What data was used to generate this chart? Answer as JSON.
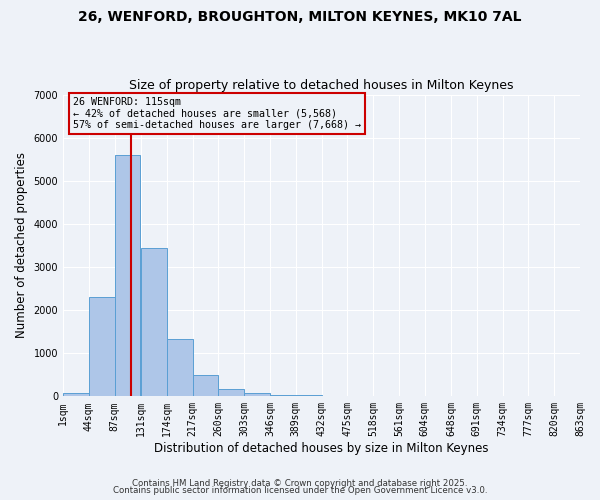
{
  "title1": "26, WENFORD, BROUGHTON, MILTON KEYNES, MK10 7AL",
  "title2": "Size of property relative to detached houses in Milton Keynes",
  "xlabel": "Distribution of detached houses by size in Milton Keynes",
  "ylabel": "Number of detached properties",
  "bar_values": [
    80,
    2300,
    5600,
    3450,
    1320,
    490,
    160,
    80,
    40,
    20,
    0,
    0,
    0,
    0,
    0,
    0,
    0,
    0,
    0,
    0
  ],
  "bin_edges": [
    1,
    44,
    87,
    131,
    174,
    217,
    260,
    303,
    346,
    389,
    432,
    475,
    518,
    561,
    604,
    648,
    691,
    734,
    777,
    820,
    863
  ],
  "xtick_labels": [
    "1sqm",
    "44sqm",
    "87sqm",
    "131sqm",
    "174sqm",
    "217sqm",
    "260sqm",
    "303sqm",
    "346sqm",
    "389sqm",
    "432sqm",
    "475sqm",
    "518sqm",
    "561sqm",
    "604sqm",
    "648sqm",
    "691sqm",
    "734sqm",
    "777sqm",
    "820sqm",
    "863sqm"
  ],
  "bar_color": "#aec6e8",
  "bar_edge_color": "#5a9fd4",
  "property_size": 115,
  "red_line_color": "#cc0000",
  "annotation_line1": "26 WENFORD: 115sqm",
  "annotation_line2": "← 42% of detached houses are smaller (5,568)",
  "annotation_line3": "57% of semi-detached houses are larger (7,668) →",
  "annotation_box_color": "#cc0000",
  "ylim": [
    0,
    7000
  ],
  "yticks": [
    0,
    1000,
    2000,
    3000,
    4000,
    5000,
    6000,
    7000
  ],
  "bg_color": "#eef2f8",
  "grid_color": "#ffffff",
  "footer1": "Contains HM Land Registry data © Crown copyright and database right 2025.",
  "footer2": "Contains public sector information licensed under the Open Government Licence v3.0.",
  "title_fontsize": 10,
  "subtitle_fontsize": 9,
  "tick_fontsize": 7,
  "label_fontsize": 8.5
}
